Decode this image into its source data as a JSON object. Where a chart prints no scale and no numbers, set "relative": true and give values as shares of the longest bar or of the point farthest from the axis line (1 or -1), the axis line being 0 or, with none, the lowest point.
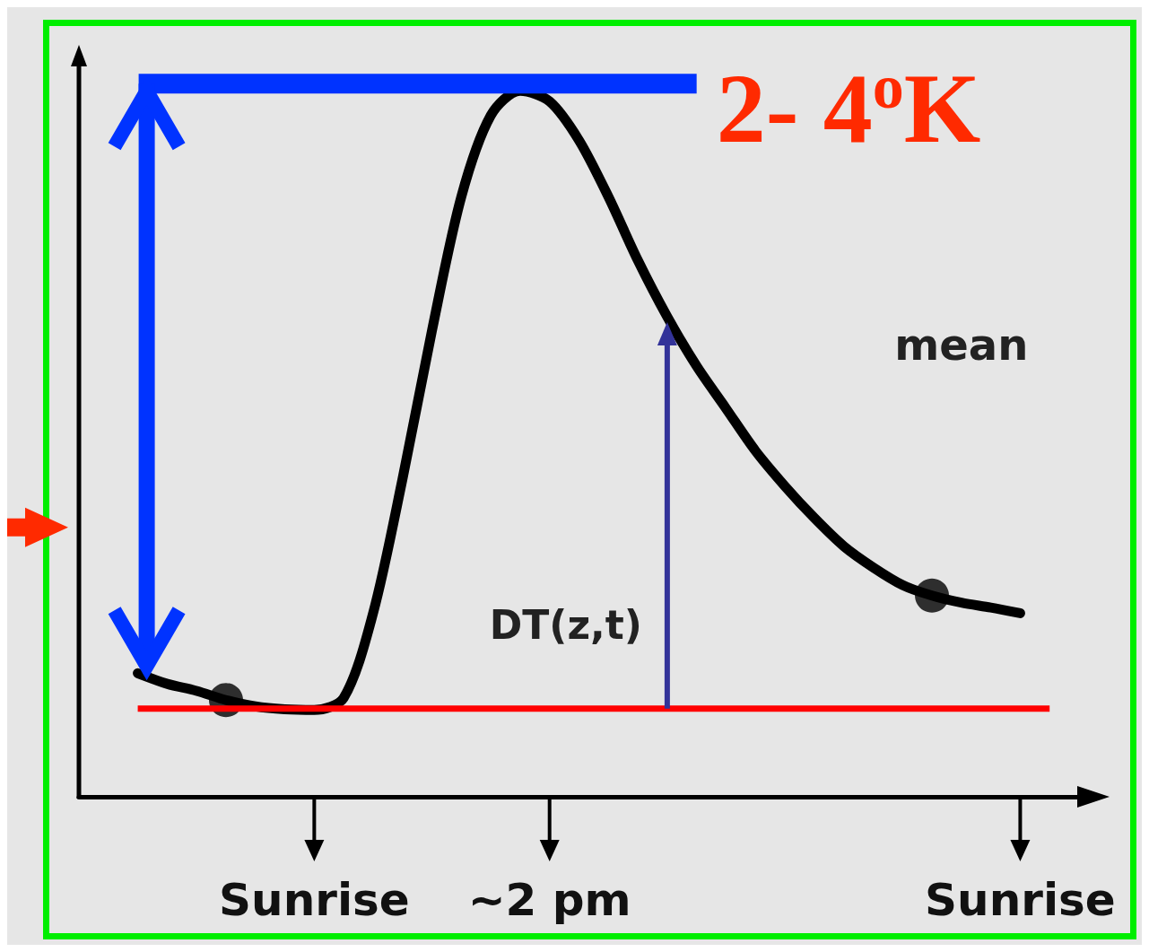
{
  "chart_data": {
    "type": "line",
    "relative": true,
    "tick_labels": "x",
    "categories": [
      null,
      null,
      null,
      null,
      null,
      null,
      null,
      null,
      "Sunrise",
      null,
      null,
      null,
      null,
      null,
      null,
      null,
      "~2 pm",
      null,
      null,
      null,
      null,
      null,
      null,
      null,
      null,
      null,
      null,
      null,
      null,
      null,
      null,
      null,
      "Sunrise",
      null,
      null
    ],
    "series": [
      {
        "color": "#000000",
        "marker": "none",
        "values": [
          null,
          null,
          0.175,
          0.16,
          0.15,
          0.137,
          0.128,
          0.124,
          0.123,
          0.14,
          0.26,
          0.45,
          0.66,
          0.85,
          0.965,
          1,
          0.985,
          0.93,
          0.85,
          0.76,
          0.68,
          0.61,
          0.55,
          0.49,
          0.44,
          0.395,
          0.355,
          0.325,
          0.3,
          0.285,
          0.275,
          0.268,
          0.26,
          null,
          null
        ]
      },
      {
        "type": "scatter",
        "color": "#000000",
        "marker": "circle",
        "values": [
          null,
          null,
          null,
          null,
          null,
          0.137,
          null,
          null,
          null,
          null,
          null,
          null,
          null,
          null,
          null,
          null,
          null,
          null,
          null,
          null,
          null,
          null,
          null,
          null,
          null,
          null,
          null,
          null,
          null,
          0.285,
          null,
          null,
          null,
          null,
          null
        ]
      }
    ],
    "ref_lines": [
      {
        "axis": "y",
        "value": 0.125,
        "color": "#ff0000"
      }
    ],
    "annotations": [
      "2- 4$^{o}$K",
      "DT(z,t)",
      "mean"
    ]
  }
}
